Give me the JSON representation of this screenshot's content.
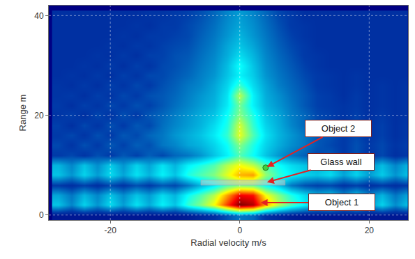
{
  "chart_data": {
    "type": "heatmap",
    "xlabel": "Radial velocity m/s",
    "ylabel": "Range m",
    "color": "Jet",
    "grid": true,
    "xlim": [
      -29.5,
      26
    ],
    "ylim": [
      -1,
      42
    ],
    "xticks": [
      -20,
      0,
      20
    ],
    "yticks": [
      0,
      20,
      40
    ],
    "zlim": [
      0,
      1
    ],
    "x": [
      -28,
      -26,
      -24,
      -22,
      -20,
      -18,
      -16,
      -14,
      -12,
      -10,
      -8,
      -6,
      -4,
      -2,
      0,
      2,
      4,
      6,
      8,
      10,
      12,
      14,
      16,
      18,
      20,
      22,
      24,
      26
    ],
    "y": [
      0,
      2,
      4,
      6,
      8,
      10,
      12,
      14,
      16,
      18,
      20,
      22,
      24,
      26,
      28,
      30,
      32,
      34,
      36,
      38,
      40
    ],
    "z": [
      [
        0.05,
        0.05,
        0.05,
        0.05,
        0.05,
        0.05,
        0.05,
        0.05,
        0.05,
        0.05,
        0.06,
        0.08,
        0.1,
        0.15,
        0.2,
        0.18,
        0.1,
        0.08,
        0.06,
        0.05,
        0.05,
        0.05,
        0.05,
        0.05,
        0.05,
        0.05,
        0.05,
        0.05
      ],
      [
        0.3,
        0.22,
        0.32,
        0.24,
        0.33,
        0.25,
        0.34,
        0.27,
        0.36,
        0.3,
        0.42,
        0.5,
        0.62,
        0.82,
        1.0,
        0.95,
        0.72,
        0.55,
        0.44,
        0.36,
        0.3,
        0.34,
        0.26,
        0.33,
        0.24,
        0.32,
        0.23,
        0.3
      ],
      [
        0.26,
        0.2,
        0.28,
        0.22,
        0.3,
        0.23,
        0.3,
        0.25,
        0.33,
        0.28,
        0.38,
        0.45,
        0.55,
        0.72,
        0.88,
        0.86,
        0.62,
        0.5,
        0.4,
        0.33,
        0.28,
        0.3,
        0.23,
        0.3,
        0.22,
        0.28,
        0.2,
        0.26
      ],
      [
        0.12,
        0.1,
        0.13,
        0.1,
        0.14,
        0.11,
        0.15,
        0.12,
        0.16,
        0.14,
        0.2,
        0.28,
        0.35,
        0.45,
        0.5,
        0.48,
        0.38,
        0.3,
        0.2,
        0.15,
        0.13,
        0.14,
        0.11,
        0.13,
        0.1,
        0.12,
        0.1,
        0.12
      ],
      [
        0.3,
        0.24,
        0.32,
        0.25,
        0.33,
        0.26,
        0.34,
        0.28,
        0.36,
        0.3,
        0.4,
        0.45,
        0.5,
        0.6,
        0.7,
        0.72,
        0.52,
        0.42,
        0.36,
        0.32,
        0.3,
        0.33,
        0.26,
        0.32,
        0.25,
        0.31,
        0.24,
        0.3
      ],
      [
        0.28,
        0.22,
        0.3,
        0.23,
        0.31,
        0.24,
        0.32,
        0.26,
        0.34,
        0.28,
        0.36,
        0.4,
        0.45,
        0.55,
        0.62,
        0.56,
        0.45,
        0.38,
        0.33,
        0.3,
        0.28,
        0.31,
        0.24,
        0.3,
        0.23,
        0.29,
        0.22,
        0.28
      ],
      [
        0.12,
        0.14,
        0.11,
        0.15,
        0.12,
        0.16,
        0.13,
        0.17,
        0.14,
        0.18,
        0.2,
        0.24,
        0.3,
        0.36,
        0.45,
        0.38,
        0.3,
        0.24,
        0.2,
        0.17,
        0.14,
        0.16,
        0.12,
        0.15,
        0.11,
        0.14,
        0.1,
        0.12
      ],
      [
        0.14,
        0.11,
        0.15,
        0.12,
        0.16,
        0.13,
        0.17,
        0.15,
        0.2,
        0.22,
        0.26,
        0.28,
        0.32,
        0.38,
        0.5,
        0.4,
        0.32,
        0.27,
        0.23,
        0.2,
        0.16,
        0.14,
        0.12,
        0.15,
        0.12,
        0.14,
        0.11,
        0.13
      ],
      [
        0.12,
        0.14,
        0.11,
        0.15,
        0.12,
        0.16,
        0.14,
        0.18,
        0.2,
        0.24,
        0.27,
        0.3,
        0.35,
        0.42,
        0.6,
        0.45,
        0.34,
        0.28,
        0.24,
        0.2,
        0.16,
        0.15,
        0.12,
        0.14,
        0.11,
        0.13,
        0.1,
        0.12
      ],
      [
        0.13,
        0.1,
        0.14,
        0.11,
        0.15,
        0.12,
        0.16,
        0.14,
        0.19,
        0.22,
        0.25,
        0.28,
        0.33,
        0.4,
        0.58,
        0.42,
        0.32,
        0.27,
        0.22,
        0.18,
        0.15,
        0.13,
        0.11,
        0.14,
        0.11,
        0.13,
        0.1,
        0.12
      ],
      [
        0.11,
        0.13,
        0.1,
        0.14,
        0.11,
        0.15,
        0.12,
        0.16,
        0.18,
        0.21,
        0.24,
        0.27,
        0.3,
        0.38,
        0.5,
        0.4,
        0.3,
        0.26,
        0.21,
        0.18,
        0.14,
        0.13,
        0.11,
        0.13,
        0.1,
        0.12,
        0.1,
        0.11
      ],
      [
        0.12,
        0.1,
        0.13,
        0.11,
        0.14,
        0.12,
        0.15,
        0.13,
        0.16,
        0.19,
        0.22,
        0.25,
        0.28,
        0.35,
        0.48,
        0.36,
        0.28,
        0.24,
        0.2,
        0.16,
        0.13,
        0.12,
        0.11,
        0.12,
        0.1,
        0.11,
        0.1,
        0.11
      ],
      [
        0.11,
        0.12,
        0.1,
        0.13,
        0.11,
        0.14,
        0.12,
        0.15,
        0.16,
        0.18,
        0.21,
        0.24,
        0.27,
        0.34,
        0.55,
        0.36,
        0.27,
        0.23,
        0.19,
        0.16,
        0.13,
        0.12,
        0.1,
        0.12,
        0.1,
        0.11,
        0.1,
        0.11
      ],
      [
        0.11,
        0.1,
        0.12,
        0.1,
        0.13,
        0.11,
        0.14,
        0.12,
        0.15,
        0.17,
        0.2,
        0.22,
        0.26,
        0.32,
        0.42,
        0.33,
        0.26,
        0.21,
        0.18,
        0.15,
        0.12,
        0.11,
        0.1,
        0.11,
        0.1,
        0.11,
        0.1,
        0.11
      ],
      [
        0.1,
        0.11,
        0.1,
        0.12,
        0.1,
        0.13,
        0.11,
        0.14,
        0.14,
        0.16,
        0.18,
        0.21,
        0.24,
        0.3,
        0.36,
        0.31,
        0.24,
        0.2,
        0.17,
        0.14,
        0.12,
        0.11,
        0.1,
        0.11,
        0.1,
        0.1,
        0.1,
        0.1
      ],
      [
        0.1,
        0.1,
        0.11,
        0.1,
        0.12,
        0.1,
        0.13,
        0.11,
        0.14,
        0.15,
        0.17,
        0.2,
        0.23,
        0.29,
        0.38,
        0.3,
        0.23,
        0.19,
        0.16,
        0.13,
        0.11,
        0.1,
        0.1,
        0.1,
        0.1,
        0.1,
        0.1,
        0.1
      ],
      [
        0.1,
        0.1,
        0.1,
        0.11,
        0.1,
        0.12,
        0.1,
        0.13,
        0.13,
        0.15,
        0.16,
        0.19,
        0.22,
        0.27,
        0.33,
        0.28,
        0.22,
        0.18,
        0.15,
        0.12,
        0.11,
        0.1,
        0.1,
        0.1,
        0.1,
        0.1,
        0.1,
        0.1
      ],
      [
        0.1,
        0.1,
        0.1,
        0.1,
        0.11,
        0.1,
        0.12,
        0.11,
        0.13,
        0.14,
        0.15,
        0.18,
        0.21,
        0.26,
        0.3,
        0.26,
        0.21,
        0.17,
        0.14,
        0.12,
        0.1,
        0.1,
        0.1,
        0.1,
        0.1,
        0.1,
        0.1,
        0.1
      ],
      [
        0.1,
        0.1,
        0.1,
        0.1,
        0.1,
        0.11,
        0.1,
        0.12,
        0.12,
        0.13,
        0.14,
        0.17,
        0.2,
        0.24,
        0.28,
        0.24,
        0.2,
        0.16,
        0.13,
        0.11,
        0.1,
        0.1,
        0.1,
        0.1,
        0.1,
        0.1,
        0.1,
        0.1
      ],
      [
        0.1,
        0.1,
        0.1,
        0.1,
        0.1,
        0.1,
        0.11,
        0.1,
        0.12,
        0.12,
        0.14,
        0.16,
        0.19,
        0.23,
        0.26,
        0.23,
        0.19,
        0.15,
        0.12,
        0.11,
        0.1,
        0.1,
        0.1,
        0.1,
        0.1,
        0.1,
        0.1,
        0.1
      ],
      [
        0.1,
        0.1,
        0.1,
        0.1,
        0.1,
        0.1,
        0.1,
        0.11,
        0.11,
        0.12,
        0.13,
        0.15,
        0.18,
        0.22,
        0.25,
        0.22,
        0.18,
        0.14,
        0.12,
        0.1,
        0.1,
        0.1,
        0.1,
        0.1,
        0.1,
        0.1,
        0.1,
        0.1
      ]
    ],
    "annotations": [
      {
        "text": "Object 2",
        "x": 4,
        "y": 9.5,
        "marker": "circle",
        "color": "#3fd13f"
      },
      {
        "text": "Glass wall",
        "x": 4,
        "y": 6.5,
        "band": [
          -6,
          7
        ]
      },
      {
        "text": "Object 1",
        "x": 3,
        "y": 2.5
      }
    ]
  }
}
